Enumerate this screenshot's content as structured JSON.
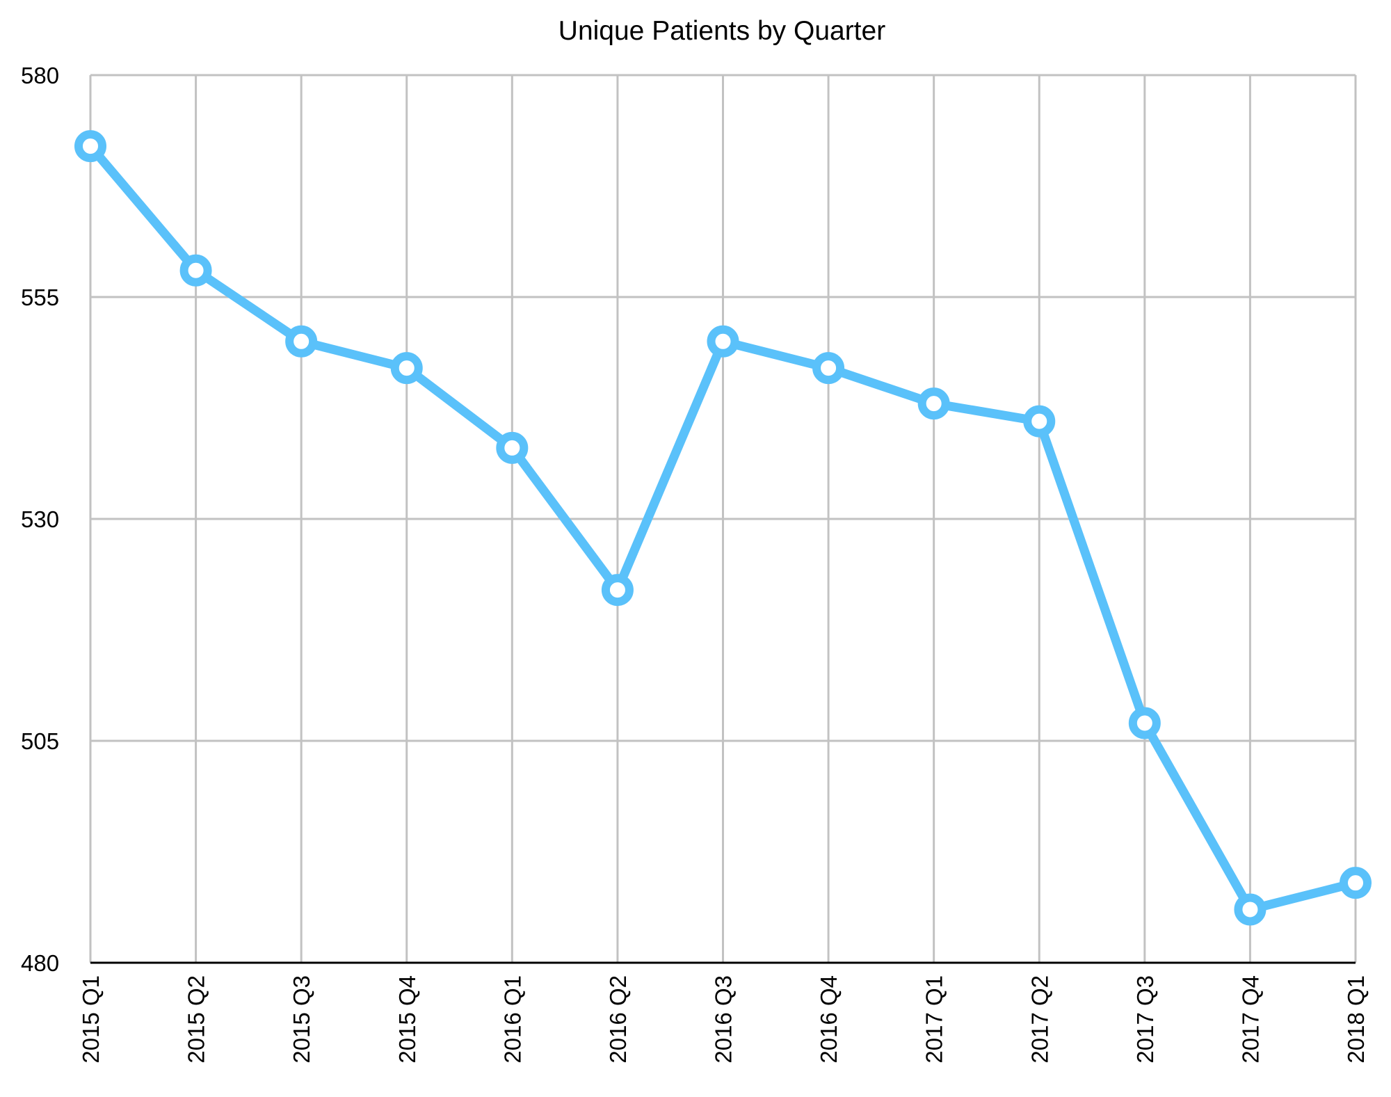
{
  "chart_data": {
    "type": "line",
    "title": "Unique Patients by Quarter",
    "xlabel": "",
    "ylabel": "",
    "categories": [
      "2015 Q1",
      "2015 Q2",
      "2015 Q3",
      "2015 Q4",
      "2016 Q1",
      "2016 Q2",
      "2016 Q3",
      "2016 Q4",
      "2017 Q1",
      "2017 Q2",
      "2017 Q3",
      "2017 Q4",
      "2018 Q1"
    ],
    "series": [
      {
        "values": [
          572,
          558,
          550,
          547,
          538,
          522,
          550,
          547,
          543,
          541,
          507,
          486,
          489
        ],
        "color": "#5ac1fa"
      }
    ],
    "ylim": [
      480,
      580
    ],
    "yticks": [
      480,
      505,
      530,
      555,
      580
    ],
    "grid": true,
    "legend": "none",
    "markers": "hollow-circle",
    "x_tick_rotation": "vertical"
  }
}
